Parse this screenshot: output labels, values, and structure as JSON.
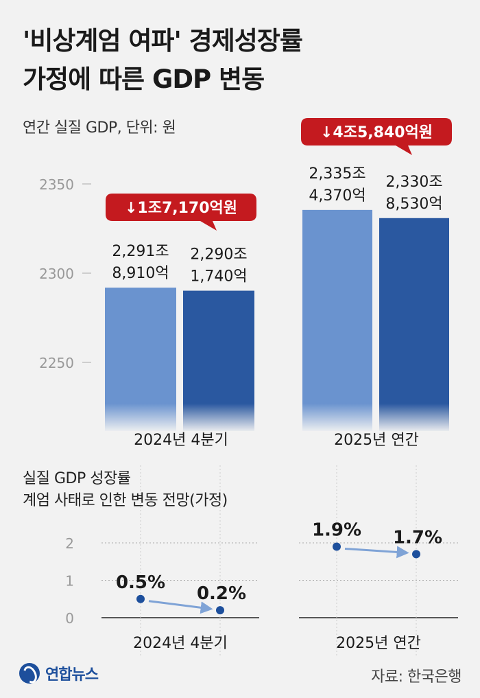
{
  "header": {
    "title_line1": "'비상계엄 여파' 경제성장률",
    "title_line2": "가정에 따른 GDP 변동",
    "unit_label": "연간 실질 GDP, 단위: 원"
  },
  "chart_data": [
    {
      "type": "bar",
      "categories": [
        "2024년 4분기",
        "2025년 연간"
      ],
      "series": [
        {
          "values": [
            2291.891,
            2335.437
          ],
          "value_labels": [
            "2,291조 8,910억",
            "2,335조 4,370억"
          ],
          "color": "#6a93cf"
        },
        {
          "values": [
            2290.174,
            2330.853
          ],
          "value_labels": [
            "2,290조 1,740억",
            "2,330조 8,530억"
          ],
          "color": "#2a58a0"
        }
      ],
      "yticks": [
        2250,
        2300,
        2350
      ],
      "ylim": [
        2225,
        2360
      ],
      "grid": false,
      "annotations": [
        {
          "category": "2024년 4분기",
          "text": "↓1조7,170억원"
        },
        {
          "category": "2025년 연간",
          "text": "↓4조5,840억원"
        }
      ]
    },
    {
      "type": "line",
      "title_lines": [
        "실질 GDP 성장률",
        "계엄 사태로 인한 변동 전망(가정)"
      ],
      "categories": [
        "2024년 4분기",
        "2025년 연간"
      ],
      "before": [
        0.5,
        1.9
      ],
      "after": [
        0.2,
        1.7
      ],
      "before_labels": [
        "0.5%",
        "1.9%"
      ],
      "after_labels": [
        "0.2%",
        "1.7%"
      ],
      "yticks": [
        0,
        1,
        2
      ],
      "ylim": [
        0,
        2
      ],
      "grid": true
    }
  ],
  "colors": {
    "bar_before": "#6a93cf",
    "bar_after": "#2a58a0",
    "badge": "#c41a1f",
    "dot": "#1d4f9c",
    "arrow": "#7fa3d6"
  },
  "footer": {
    "brand": "연합뉴스",
    "source": "자료: 한국은행"
  }
}
